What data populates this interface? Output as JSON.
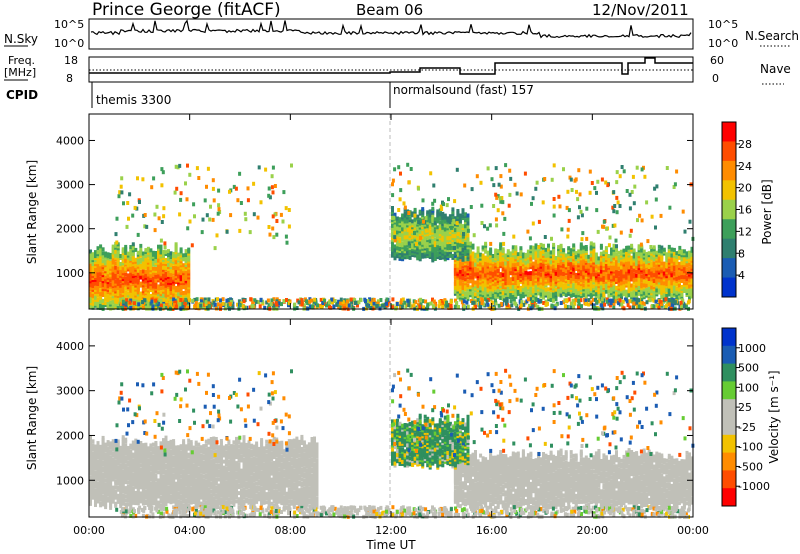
{
  "header": {
    "station": "Prince George (fitACF)",
    "beam": "Beam 06",
    "date": "12/Nov/2011"
  },
  "top_panels": {
    "nsky_label": "N.Sky",
    "nsearch_label": "N.Search",
    "ticks_top": "10^5",
    "ticks_bottom": "10^0",
    "ticks_top_right": "10^5",
    "ticks_bottom_right": "10^0",
    "freq_label_1": "Freq.",
    "freq_label_2": "[MHz]",
    "freq_ticks": [
      "18",
      "8"
    ],
    "nave_label": "Nave",
    "nave_ticks": [
      "60",
      "0"
    ],
    "cpid_label": "CPID",
    "cpid_1": "themis 3300",
    "cpid_2": "normalsound (fast) 157"
  },
  "colors": {
    "power_scale": [
      "#0033cc",
      "#1a5cb3",
      "#2f7f6f",
      "#3d9f5a",
      "#9ad14a",
      "#f2c200",
      "#ff8c00",
      "#ff4d00",
      "#ff0000"
    ],
    "velocity_scale": [
      "#ff0000",
      "#ff4d00",
      "#ff8c00",
      "#f2c200",
      "#c0c0b8",
      "#c0c0b8",
      "#66cc33",
      "#2f8f5f",
      "#1a5cb3",
      "#0033cc"
    ]
  },
  "chart_data": [
    {
      "type": "heatmap",
      "title": "Power",
      "xlabel": "",
      "ylabel": "Slant Range [km]",
      "x_ticks": [
        "00:00",
        "04:00",
        "08:00",
        "12:00",
        "16:00",
        "20:00",
        "00:00"
      ],
      "y_ticks": [
        "1000",
        "2000",
        "3000",
        "4000"
      ],
      "ylim": [
        180,
        4600
      ],
      "xlim_hours": [
        0,
        24
      ],
      "colorbar": {
        "label": "Power [dB]",
        "ticks": [
          "4",
          "8",
          "12",
          "16",
          "20",
          "24",
          "28"
        ]
      },
      "features": [
        {
          "t_start_hours": 0.0,
          "t_end_hours": 4.0,
          "range_low_km": 200,
          "range_high_km": 1600,
          "typical_power_db": 26
        },
        {
          "t_start_hours": 14.5,
          "t_end_hours": 24.0,
          "range_low_km": 500,
          "range_high_km": 1600,
          "typical_power_db": 26
        },
        {
          "t_start_hours": 12.0,
          "t_end_hours": 15.0,
          "range_low_km": 1400,
          "range_high_km": 2400,
          "typical_power_db": 18
        }
      ]
    },
    {
      "type": "heatmap",
      "title": "Velocity",
      "xlabel": "Time UT",
      "ylabel": "Slant Range [km]",
      "x_ticks": [
        "00:00",
        "04:00",
        "08:00",
        "12:00",
        "16:00",
        "20:00",
        "00:00"
      ],
      "y_ticks": [
        "1000",
        "2000",
        "3000",
        "4000"
      ],
      "ylim": [
        180,
        4600
      ],
      "xlim_hours": [
        0,
        24
      ],
      "colorbar": {
        "label": "Velocity [m s⁻¹]",
        "ticks": [
          "1000",
          "500",
          "100",
          "25",
          "-25",
          "-100",
          "-500",
          "-1000"
        ]
      },
      "features": [
        {
          "t_start_hours": 0.0,
          "t_end_hours": 9.0,
          "range_low_km": 500,
          "range_high_km": 1900,
          "typical_velocity_ms": 0
        },
        {
          "t_start_hours": 14.5,
          "t_end_hours": 24.0,
          "range_low_km": 500,
          "range_high_km": 1600,
          "typical_velocity_ms": 0
        },
        {
          "t_start_hours": 12.0,
          "t_end_hours": 15.0,
          "range_low_km": 1400,
          "range_high_km": 2400,
          "typical_velocity_ms": 200
        }
      ]
    }
  ]
}
